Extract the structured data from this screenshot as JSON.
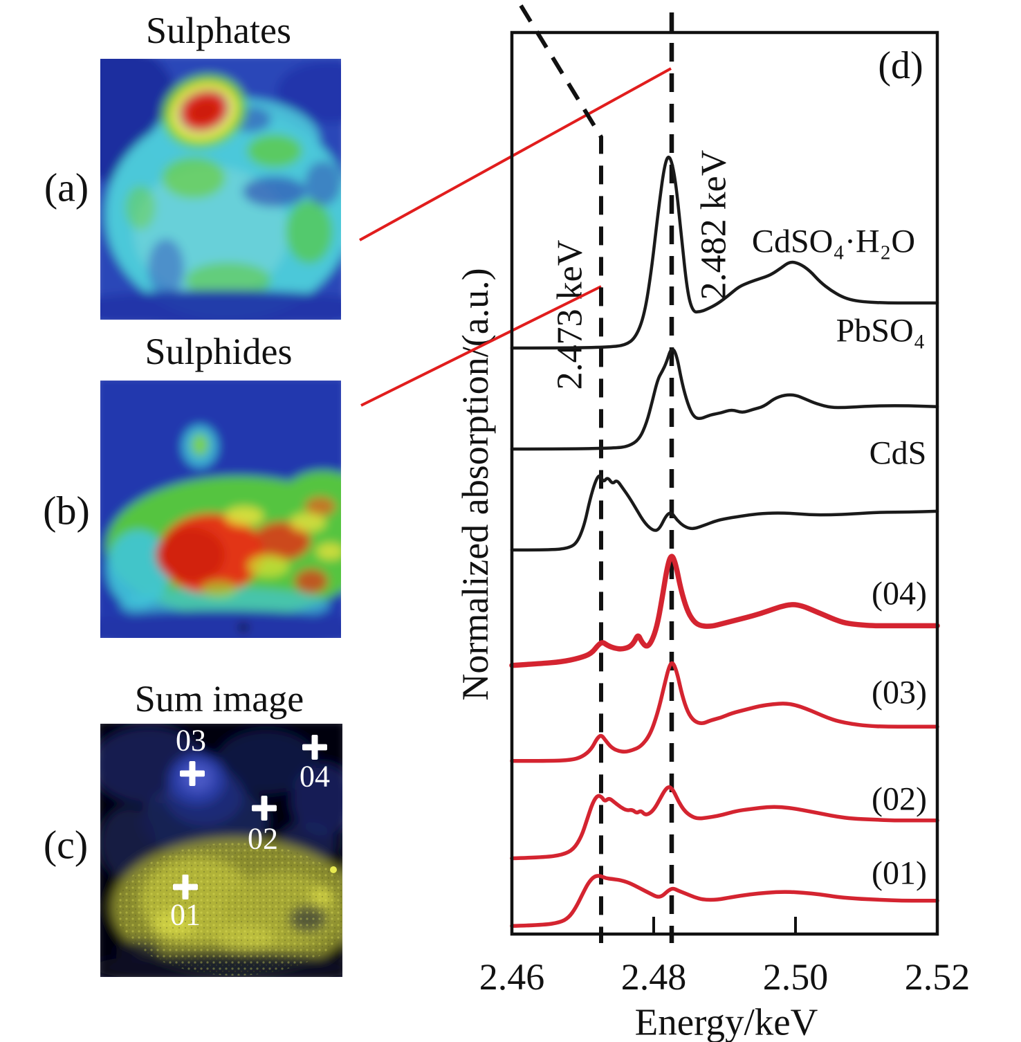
{
  "figure": {
    "panels": {
      "a": {
        "tag": "(a)",
        "title": "Sulphates"
      },
      "b": {
        "tag": "(b)",
        "title": "Sulphides"
      },
      "c": {
        "tag": "(c)",
        "title": "Sum image",
        "markers": [
          {
            "label": "03"
          },
          {
            "label": "04"
          },
          {
            "label": "02"
          },
          {
            "label": "01"
          }
        ]
      },
      "d": {
        "tag": "(d)"
      }
    },
    "colors": {
      "ink": "#111111",
      "spectrum_black": "#1a1a1a",
      "spectrum_red": "#d42430",
      "connector_red": "#e11d1d",
      "heatmap_low": "#2136a8",
      "heatmap_cyan": "#4cc8d9",
      "heatmap_green": "#5fcb3a",
      "heatmap_yellow": "#e9e23c",
      "heatmap_high_red": "#e23018"
    }
  },
  "chart_data": {
    "type": "line",
    "title": "",
    "xlabel": "Energy/keV",
    "ylabel": "Normalized absorption/(a.u.)",
    "xlim": [
      2.46,
      2.52
    ],
    "ylim": [
      0,
      10
    ],
    "grid": false,
    "legend_position": "right-inline",
    "panel_label": "(d)",
    "x_ticks": [
      "2.46",
      "2.48",
      "2.50",
      "2.52"
    ],
    "x_tick_values": [
      2.46,
      2.48,
      2.5,
      2.52
    ],
    "annotations": [
      {
        "label": "2.473 keV",
        "x": 2.473,
        "style": "dashed-vertical"
      },
      {
        "label": "2.482 keV",
        "x": 2.482,
        "style": "dashed-vertical"
      }
    ],
    "series": [
      {
        "id": "cdso4-h2o",
        "name": "CdSO₄·H₂O",
        "color": "#1a1a1a",
        "line_width": 4.5,
        "points": [
          [
            2.46,
            6.5
          ],
          [
            2.4675,
            6.5
          ],
          [
            2.4735,
            6.51
          ],
          [
            2.476,
            6.53
          ],
          [
            2.4775,
            6.62
          ],
          [
            2.4787,
            6.87
          ],
          [
            2.4797,
            7.37
          ],
          [
            2.4806,
            7.99
          ],
          [
            2.4815,
            8.53
          ],
          [
            2.4822,
            8.66
          ],
          [
            2.483,
            8.41
          ],
          [
            2.4838,
            7.83
          ],
          [
            2.4847,
            7.14
          ],
          [
            2.4855,
            6.9
          ],
          [
            2.4865,
            6.9
          ],
          [
            2.4875,
            6.93
          ],
          [
            2.489,
            6.99
          ],
          [
            2.4905,
            7.08
          ],
          [
            2.492,
            7.18
          ],
          [
            2.4935,
            7.23
          ],
          [
            2.495,
            7.27
          ],
          [
            2.4965,
            7.31
          ],
          [
            2.498,
            7.39
          ],
          [
            2.4992,
            7.46
          ],
          [
            2.5005,
            7.44
          ],
          [
            2.502,
            7.36
          ],
          [
            2.5035,
            7.23
          ],
          [
            2.505,
            7.14
          ],
          [
            2.5065,
            7.07
          ],
          [
            2.508,
            7.03
          ],
          [
            2.51,
            7.01
          ],
          [
            2.513,
            7.0
          ],
          [
            2.516,
            7.0
          ],
          [
            2.52,
            7.0
          ]
        ]
      },
      {
        "id": "pbso4",
        "name": "PbSO₄",
        "color": "#1a1a1a",
        "line_width": 4.5,
        "points": [
          [
            2.46,
            5.38
          ],
          [
            2.468,
            5.38
          ],
          [
            2.4745,
            5.39
          ],
          [
            2.4765,
            5.41
          ],
          [
            2.478,
            5.49
          ],
          [
            2.479,
            5.67
          ],
          [
            2.4798,
            5.91
          ],
          [
            2.4806,
            6.16
          ],
          [
            2.4812,
            6.24
          ],
          [
            2.4818,
            6.34
          ],
          [
            2.4825,
            6.51
          ],
          [
            2.4832,
            6.44
          ],
          [
            2.484,
            6.11
          ],
          [
            2.4848,
            5.88
          ],
          [
            2.4856,
            5.74
          ],
          [
            2.4865,
            5.71
          ],
          [
            2.488,
            5.76
          ],
          [
            2.4895,
            5.78
          ],
          [
            2.491,
            5.82
          ],
          [
            2.4925,
            5.78
          ],
          [
            2.494,
            5.82
          ],
          [
            2.4955,
            5.85
          ],
          [
            2.497,
            5.94
          ],
          [
            2.4985,
            5.98
          ],
          [
            2.5,
            5.98
          ],
          [
            2.5015,
            5.93
          ],
          [
            2.503,
            5.88
          ],
          [
            2.505,
            5.84
          ],
          [
            2.507,
            5.84
          ],
          [
            2.509,
            5.85
          ],
          [
            2.512,
            5.86
          ],
          [
            2.516,
            5.86
          ],
          [
            2.52,
            5.85
          ]
        ]
      },
      {
        "id": "cds",
        "name": "CdS",
        "color": "#1a1a1a",
        "line_width": 4.5,
        "points": [
          [
            2.46,
            4.26
          ],
          [
            2.4655,
            4.26
          ],
          [
            2.468,
            4.28
          ],
          [
            2.4692,
            4.34
          ],
          [
            2.4702,
            4.53
          ],
          [
            2.471,
            4.82
          ],
          [
            2.4718,
            5.03
          ],
          [
            2.4724,
            5.1
          ],
          [
            2.4729,
            5.01
          ],
          [
            2.4735,
            5.07
          ],
          [
            2.4742,
            4.99
          ],
          [
            2.4748,
            5.04
          ],
          [
            2.4756,
            4.95
          ],
          [
            2.4765,
            4.85
          ],
          [
            2.4775,
            4.72
          ],
          [
            2.4788,
            4.55
          ],
          [
            2.48,
            4.47
          ],
          [
            2.4808,
            4.49
          ],
          [
            2.4818,
            4.65
          ],
          [
            2.4825,
            4.68
          ],
          [
            2.4833,
            4.59
          ],
          [
            2.4843,
            4.52
          ],
          [
            2.4855,
            4.49
          ],
          [
            2.487,
            4.53
          ],
          [
            2.489,
            4.59
          ],
          [
            2.491,
            4.62
          ],
          [
            2.4935,
            4.65
          ],
          [
            2.496,
            4.67
          ],
          [
            2.499,
            4.67
          ],
          [
            2.502,
            4.65
          ],
          [
            2.505,
            4.65
          ],
          [
            2.508,
            4.66
          ],
          [
            2.512,
            4.68
          ],
          [
            2.516,
            4.68
          ],
          [
            2.52,
            4.69
          ]
        ]
      },
      {
        "id": "04",
        "name": "(04)",
        "color": "#d42430",
        "line_width": 7.5,
        "points": [
          [
            2.46,
            2.98
          ],
          [
            2.464,
            3.0
          ],
          [
            2.467,
            3.02
          ],
          [
            2.4695,
            3.06
          ],
          [
            2.4712,
            3.11
          ],
          [
            2.4722,
            3.21
          ],
          [
            2.4728,
            3.24
          ],
          [
            2.4735,
            3.2
          ],
          [
            2.4745,
            3.17
          ],
          [
            2.4755,
            3.16
          ],
          [
            2.4765,
            3.18
          ],
          [
            2.4772,
            3.23
          ],
          [
            2.4778,
            3.33
          ],
          [
            2.4783,
            3.24
          ],
          [
            2.479,
            3.18
          ],
          [
            2.4797,
            3.24
          ],
          [
            2.4805,
            3.42
          ],
          [
            2.4812,
            3.73
          ],
          [
            2.4819,
            4.07
          ],
          [
            2.4825,
            4.22
          ],
          [
            2.4831,
            4.11
          ],
          [
            2.4838,
            3.83
          ],
          [
            2.4847,
            3.59
          ],
          [
            2.4856,
            3.47
          ],
          [
            2.4865,
            3.42
          ],
          [
            2.488,
            3.41
          ],
          [
            2.49,
            3.45
          ],
          [
            2.492,
            3.49
          ],
          [
            2.494,
            3.53
          ],
          [
            2.496,
            3.58
          ],
          [
            2.4978,
            3.63
          ],
          [
            2.4995,
            3.66
          ],
          [
            2.501,
            3.64
          ],
          [
            2.5025,
            3.59
          ],
          [
            2.504,
            3.54
          ],
          [
            2.5055,
            3.49
          ],
          [
            2.507,
            3.45
          ],
          [
            2.509,
            3.43
          ],
          [
            2.511,
            3.42
          ],
          [
            2.514,
            3.42
          ],
          [
            2.517,
            3.42
          ],
          [
            2.52,
            3.42
          ]
        ]
      },
      {
        "id": "03",
        "name": "(03)",
        "color": "#d42430",
        "line_width": 5.5,
        "points": [
          [
            2.46,
            1.92
          ],
          [
            2.465,
            1.92
          ],
          [
            2.4685,
            1.93
          ],
          [
            2.47,
            1.97
          ],
          [
            2.4712,
            2.05
          ],
          [
            2.472,
            2.17
          ],
          [
            2.4726,
            2.21
          ],
          [
            2.4732,
            2.15
          ],
          [
            2.474,
            2.07
          ],
          [
            2.475,
            2.03
          ],
          [
            2.476,
            2.02
          ],
          [
            2.477,
            2.04
          ],
          [
            2.4782,
            2.08
          ],
          [
            2.4795,
            2.21
          ],
          [
            2.4806,
            2.46
          ],
          [
            2.4815,
            2.76
          ],
          [
            2.4822,
            2.98
          ],
          [
            2.4827,
            3.02
          ],
          [
            2.4833,
            2.9
          ],
          [
            2.484,
            2.65
          ],
          [
            2.4848,
            2.46
          ],
          [
            2.4857,
            2.36
          ],
          [
            2.4868,
            2.33
          ],
          [
            2.488,
            2.37
          ],
          [
            2.4895,
            2.4
          ],
          [
            2.491,
            2.45
          ],
          [
            2.493,
            2.49
          ],
          [
            2.495,
            2.53
          ],
          [
            2.4968,
            2.55
          ],
          [
            2.4985,
            2.56
          ],
          [
            2.5,
            2.54
          ],
          [
            2.5015,
            2.5
          ],
          [
            2.503,
            2.45
          ],
          [
            2.5045,
            2.4
          ],
          [
            2.506,
            2.36
          ],
          [
            2.508,
            2.33
          ],
          [
            2.51,
            2.31
          ],
          [
            2.513,
            2.3
          ],
          [
            2.516,
            2.3
          ],
          [
            2.52,
            2.3
          ]
        ]
      },
      {
        "id": "02",
        "name": "(02)",
        "color": "#d42430",
        "line_width": 5.5,
        "points": [
          [
            2.46,
            0.84
          ],
          [
            2.4645,
            0.85
          ],
          [
            2.4672,
            0.88
          ],
          [
            2.4687,
            0.94
          ],
          [
            2.4698,
            1.08
          ],
          [
            2.4706,
            1.27
          ],
          [
            2.4714,
            1.46
          ],
          [
            2.4721,
            1.54
          ],
          [
            2.4727,
            1.52
          ],
          [
            2.4731,
            1.47
          ],
          [
            2.4737,
            1.51
          ],
          [
            2.4745,
            1.46
          ],
          [
            2.4753,
            1.41
          ],
          [
            2.4762,
            1.37
          ],
          [
            2.477,
            1.38
          ],
          [
            2.4776,
            1.34
          ],
          [
            2.4782,
            1.37
          ],
          [
            2.4788,
            1.32
          ],
          [
            2.4795,
            1.34
          ],
          [
            2.4802,
            1.4
          ],
          [
            2.4809,
            1.5
          ],
          [
            2.4816,
            1.6
          ],
          [
            2.4822,
            1.64
          ],
          [
            2.4828,
            1.59
          ],
          [
            2.4835,
            1.47
          ],
          [
            2.4843,
            1.37
          ],
          [
            2.4852,
            1.31
          ],
          [
            2.4862,
            1.28
          ],
          [
            2.4875,
            1.29
          ],
          [
            2.489,
            1.31
          ],
          [
            2.4905,
            1.34
          ],
          [
            2.492,
            1.37
          ],
          [
            2.494,
            1.39
          ],
          [
            2.496,
            1.41
          ],
          [
            2.498,
            1.41
          ],
          [
            2.5,
            1.39
          ],
          [
            2.502,
            1.36
          ],
          [
            2.504,
            1.33
          ],
          [
            2.506,
            1.3
          ],
          [
            2.508,
            1.28
          ],
          [
            2.511,
            1.27
          ],
          [
            2.514,
            1.26
          ],
          [
            2.517,
            1.26
          ],
          [
            2.52,
            1.26
          ]
        ]
      },
      {
        "id": "01",
        "name": "(01)",
        "color": "#d42430",
        "line_width": 5.5,
        "points": [
          [
            2.46,
            0.09
          ],
          [
            2.4645,
            0.1
          ],
          [
            2.4668,
            0.13
          ],
          [
            2.468,
            0.18
          ],
          [
            2.469,
            0.29
          ],
          [
            2.47,
            0.45
          ],
          [
            2.4708,
            0.57
          ],
          [
            2.4716,
            0.64
          ],
          [
            2.4724,
            0.65
          ],
          [
            2.4732,
            0.62
          ],
          [
            2.4742,
            0.61
          ],
          [
            2.4752,
            0.6
          ],
          [
            2.4765,
            0.57
          ],
          [
            2.478,
            0.51
          ],
          [
            2.4795,
            0.45
          ],
          [
            2.4805,
            0.41
          ],
          [
            2.4812,
            0.42
          ],
          [
            2.482,
            0.48
          ],
          [
            2.4827,
            0.51
          ],
          [
            2.4835,
            0.48
          ],
          [
            2.4845,
            0.45
          ],
          [
            2.4857,
            0.41
          ],
          [
            2.487,
            0.38
          ],
          [
            2.489,
            0.38
          ],
          [
            2.491,
            0.41
          ],
          [
            2.4935,
            0.44
          ],
          [
            2.496,
            0.46
          ],
          [
            2.4985,
            0.47
          ],
          [
            2.501,
            0.46
          ],
          [
            2.5035,
            0.44
          ],
          [
            2.506,
            0.41
          ],
          [
            2.509,
            0.39
          ],
          [
            2.512,
            0.38
          ],
          [
            2.515,
            0.37
          ],
          [
            2.518,
            0.37
          ],
          [
            2.52,
            0.37
          ]
        ]
      }
    ]
  }
}
